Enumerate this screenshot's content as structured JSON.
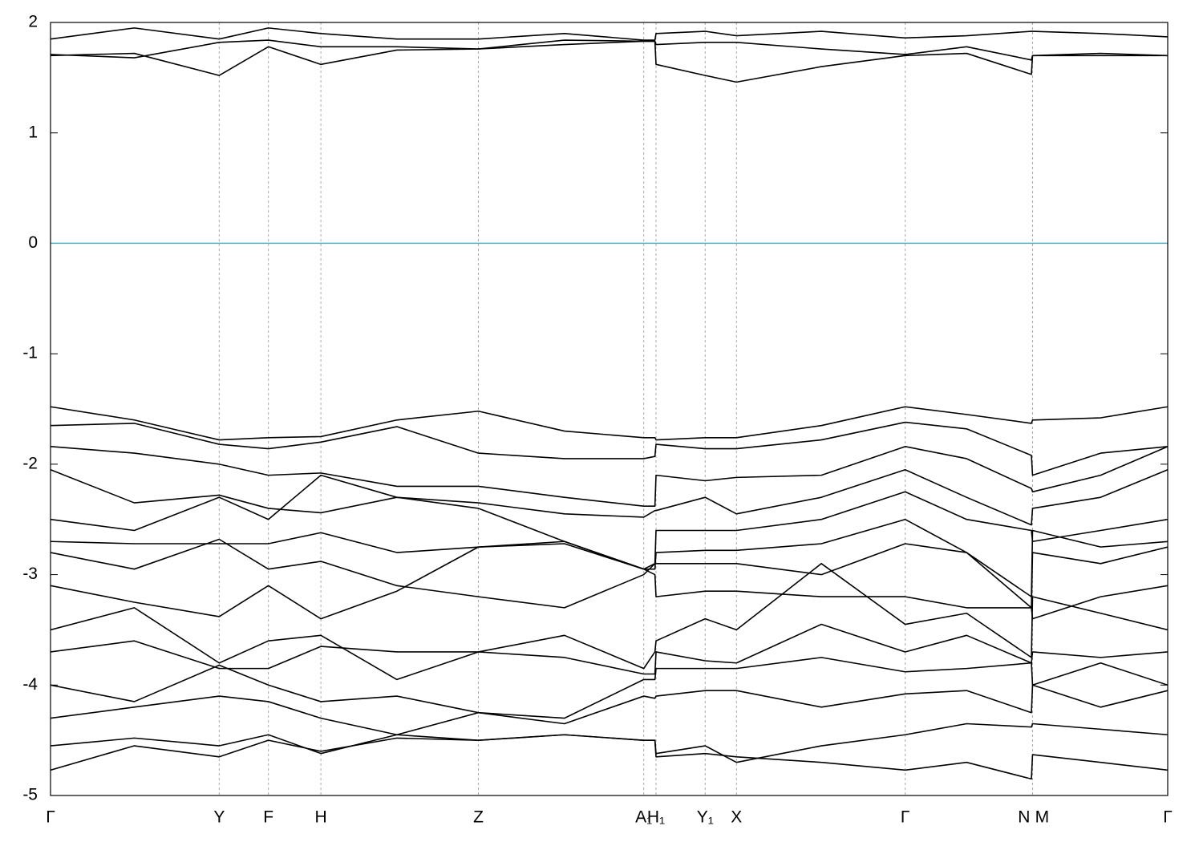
{
  "chart_data": {
    "type": "bands",
    "color": "#000000",
    "fermi_level": 0,
    "fermi_color": "#5aaec8",
    "grid": true,
    "xlim": [
      0,
      1
    ],
    "ylim": [
      -5,
      2
    ],
    "yticks": [
      -5,
      -4,
      -3,
      -2,
      -1,
      0,
      1,
      2
    ],
    "xticks": [
      {
        "value": 0,
        "label": "Γ"
      },
      {
        "value": 0.151,
        "label": "Y"
      },
      {
        "value": 0.195,
        "label": "F"
      },
      {
        "value": 0.242,
        "label": "H"
      },
      {
        "value": 0.383,
        "label": "Z"
      },
      {
        "value": 0.531,
        "label": "A₁"
      },
      {
        "value": 0.542,
        "label": "H₁"
      },
      {
        "value": 0.586,
        "label": "Y₁"
      },
      {
        "value": 0.614,
        "label": "X"
      },
      {
        "value": 0.765,
        "label": "Γ"
      },
      {
        "value": 0.879,
        "label": "N"
      },
      {
        "value": 0.8791,
        "label": "M"
      },
      {
        "value": 1,
        "label": "Γ"
      }
    ],
    "x": [
      0,
      0.075,
      0.151,
      0.195,
      0.242,
      0.31,
      0.383,
      0.46,
      0.531,
      0.541,
      0.542,
      0.586,
      0.614,
      0.69,
      0.765,
      0.82,
      0.878,
      0.879,
      0.94,
      1.0
    ],
    "bands": [
      [
        1.7,
        1.72,
        1.52,
        1.78,
        1.62,
        1.75,
        1.76,
        1.8,
        1.83,
        1.83,
        1.62,
        1.52,
        1.46,
        1.6,
        1.7,
        1.72,
        1.53,
        1.7,
        1.7,
        1.7
      ],
      [
        1.71,
        1.68,
        1.82,
        1.84,
        1.78,
        1.78,
        1.76,
        1.84,
        1.83,
        1.83,
        1.8,
        1.82,
        1.82,
        1.76,
        1.71,
        1.78,
        1.66,
        1.7,
        1.72,
        1.7
      ],
      [
        1.85,
        1.95,
        1.85,
        1.95,
        1.9,
        1.85,
        1.85,
        1.9,
        1.84,
        1.84,
        1.9,
        1.92,
        1.88,
        1.92,
        1.86,
        1.88,
        1.92,
        1.92,
        1.9,
        1.87
      ],
      [
        -1.48,
        -1.6,
        -1.78,
        -1.76,
        -1.75,
        -1.6,
        -1.52,
        -1.7,
        -1.76,
        -1.76,
        -1.78,
        -1.76,
        -1.76,
        -1.65,
        -1.48,
        -1.55,
        -1.63,
        -1.6,
        -1.58,
        -1.48
      ],
      [
        -1.65,
        -1.63,
        -1.82,
        -1.86,
        -1.8,
        -1.66,
        -1.9,
        -1.95,
        -1.95,
        -1.93,
        -1.82,
        -1.86,
        -1.86,
        -1.78,
        -1.62,
        -1.68,
        -1.92,
        -2.1,
        -1.9,
        -1.84
      ],
      [
        -1.84,
        -1.9,
        -2.0,
        -2.1,
        -2.08,
        -2.2,
        -2.2,
        -2.3,
        -2.38,
        -2.38,
        -2.1,
        -2.15,
        -2.12,
        -2.1,
        -1.84,
        -1.95,
        -2.22,
        -2.25,
        -2.1,
        -1.84
      ],
      [
        -2.05,
        -2.35,
        -2.28,
        -2.4,
        -2.44,
        -2.3,
        -2.35,
        -2.45,
        -2.48,
        -2.42,
        -2.42,
        -2.3,
        -2.45,
        -2.3,
        -2.05,
        -2.3,
        -2.55,
        -2.4,
        -2.3,
        -2.05
      ],
      [
        -2.5,
        -2.6,
        -2.3,
        -2.5,
        -2.1,
        -2.3,
        -2.4,
        -2.7,
        -2.95,
        -2.9,
        -2.6,
        -2.6,
        -2.6,
        -2.5,
        -2.25,
        -2.5,
        -2.6,
        -2.7,
        -2.6,
        -2.5
      ],
      [
        -2.7,
        -2.72,
        -2.72,
        -2.72,
        -2.62,
        -2.8,
        -2.75,
        -2.72,
        -2.95,
        -2.95,
        -2.8,
        -2.78,
        -2.78,
        -2.72,
        -2.5,
        -2.8,
        -3.2,
        -2.6,
        -2.75,
        -2.7
      ],
      [
        -2.8,
        -2.95,
        -2.68,
        -2.95,
        -2.88,
        -3.1,
        -3.2,
        -3.3,
        -3.0,
        -2.9,
        -2.9,
        -2.9,
        -2.9,
        -3.0,
        -2.72,
        -2.8,
        -3.3,
        -2.8,
        -2.9,
        -2.75
      ],
      [
        -3.1,
        -3.25,
        -3.38,
        -3.1,
        -3.4,
        -3.15,
        -2.75,
        -2.7,
        -2.95,
        -3.0,
        -3.2,
        -3.15,
        -3.15,
        -3.2,
        -3.2,
        -3.3,
        -3.3,
        -3.4,
        -3.2,
        -3.1
      ],
      [
        -3.5,
        -3.3,
        -3.8,
        -3.6,
        -3.55,
        -3.95,
        -3.7,
        -3.55,
        -3.85,
        -3.7,
        -3.6,
        -3.4,
        -3.5,
        -2.9,
        -3.45,
        -3.35,
        -3.75,
        -3.2,
        -3.35,
        -3.5
      ],
      [
        -3.7,
        -3.6,
        -3.85,
        -3.85,
        -3.65,
        -3.7,
        -3.7,
        -3.75,
        -3.9,
        -3.9,
        -3.7,
        -3.78,
        -3.8,
        -3.45,
        -3.7,
        -3.55,
        -3.8,
        -3.7,
        -3.75,
        -3.7
      ],
      [
        -4.0,
        -4.15,
        -3.82,
        -4.0,
        -4.15,
        -4.1,
        -4.25,
        -4.3,
        -3.95,
        -3.95,
        -3.85,
        -3.85,
        -3.85,
        -3.75,
        -3.88,
        -3.85,
        -3.8,
        -4.0,
        -3.8,
        -4.0
      ],
      [
        -4.3,
        -4.2,
        -4.1,
        -4.15,
        -4.3,
        -4.45,
        -4.25,
        -4.35,
        -4.1,
        -4.12,
        -4.1,
        -4.05,
        -4.05,
        -4.2,
        -4.08,
        -4.05,
        -4.25,
        -4.0,
        -4.2,
        -4.05
      ],
      [
        -4.55,
        -4.48,
        -4.55,
        -4.45,
        -4.62,
        -4.45,
        -4.5,
        -4.45,
        -4.5,
        -4.5,
        -4.62,
        -4.55,
        -4.7,
        -4.55,
        -4.45,
        -4.35,
        -4.38,
        -4.35,
        -4.4,
        -4.45
      ],
      [
        -4.77,
        -4.55,
        -4.65,
        -4.5,
        -4.6,
        -4.48,
        -4.5,
        -4.45,
        -4.5,
        -4.5,
        -4.65,
        -4.62,
        -4.65,
        -4.7,
        -4.77,
        -4.7,
        -4.85,
        -4.63,
        -4.7,
        -4.77
      ]
    ]
  }
}
